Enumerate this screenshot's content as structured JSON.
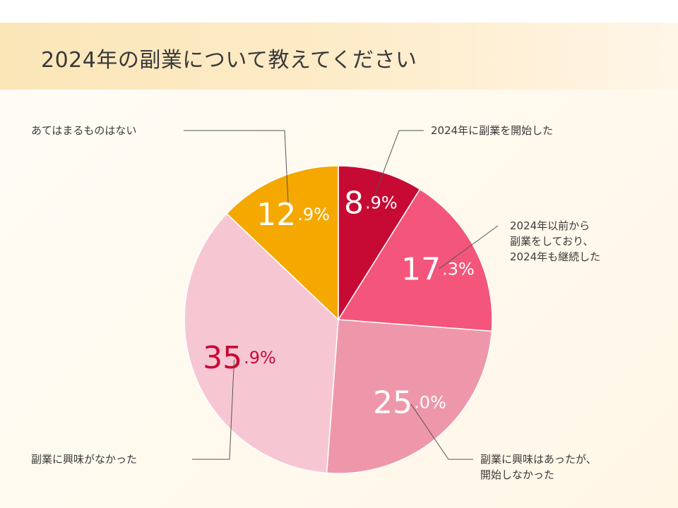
{
  "title": "2024年の副業について教えてください",
  "colors": {
    "title_band": "#fce8bf",
    "leader_line": "#555555"
  },
  "chart_data": {
    "type": "pie",
    "start_angle_deg": 0,
    "direction": "clockwise",
    "unit": "%",
    "slices": [
      {
        "label_lines": [
          "2024年に副業を開始した"
        ],
        "value": 8.9,
        "int_part": "8",
        "dec_part": ".9%",
        "color": "#c70a34",
        "value_color": "#ffffff"
      },
      {
        "label_lines": [
          "2024年以前から",
          "副業をしており、",
          "2024年も継続した"
        ],
        "value": 17.3,
        "int_part": "17",
        "dec_part": ".3%",
        "color": "#f3567a",
        "value_color": "#ffffff"
      },
      {
        "label_lines": [
          "副業に興味はあったが、",
          "開始しなかった"
        ],
        "value": 25.0,
        "int_part": "25",
        "dec_part": ".0%",
        "color": "#ee97ab",
        "value_color": "#ffffff"
      },
      {
        "label_lines": [
          "副業に興味がなかった"
        ],
        "value": 35.9,
        "int_part": "35",
        "dec_part": ".9%",
        "color": "#f6c7d3",
        "value_color": "#c70a34"
      },
      {
        "label_lines": [
          "あてはまるものはない"
        ],
        "value": 12.9,
        "int_part": "12",
        "dec_part": ".9%",
        "color": "#f5a800",
        "value_color": "#ffffff"
      }
    ]
  }
}
